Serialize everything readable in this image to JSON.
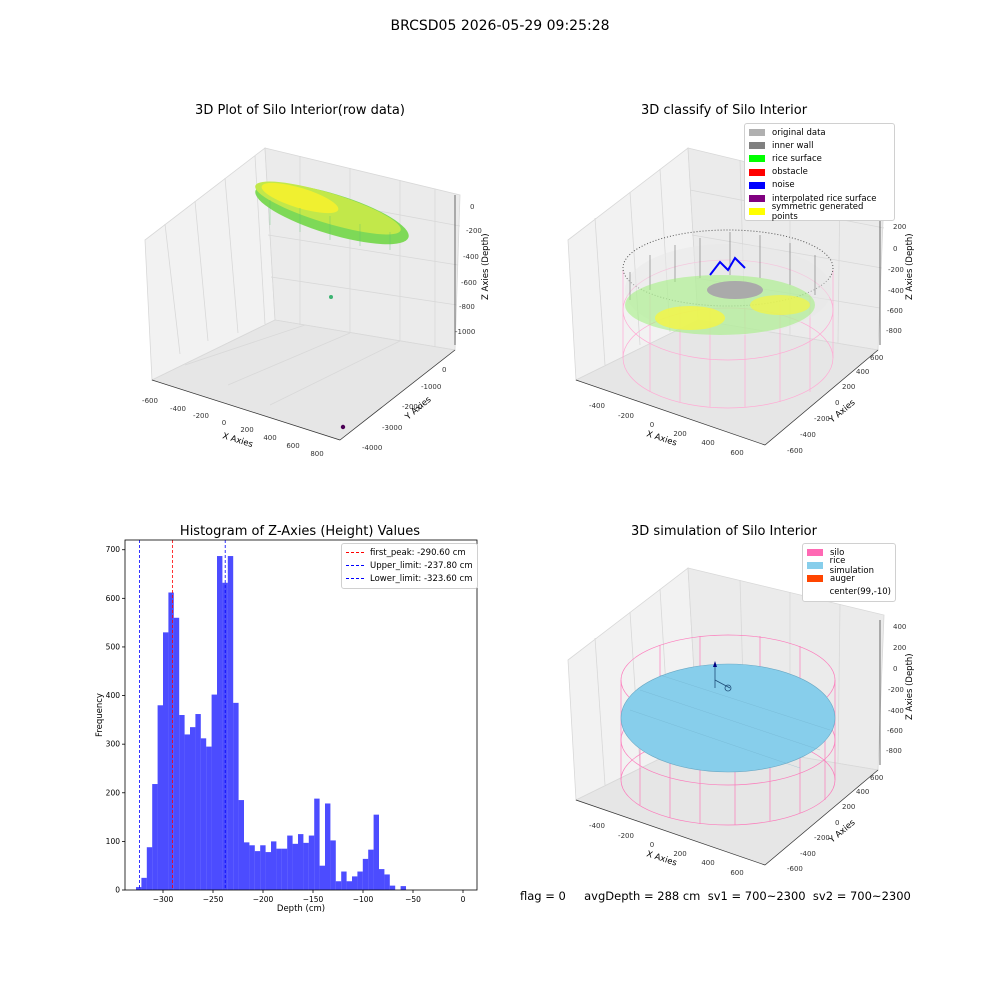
{
  "suptitle": "BRCSD05 2026-05-29 09:25:28",
  "panels": {
    "raw": {
      "title": "3D Plot of Silo Interior(row data)",
      "xlabel": "X Axies",
      "ylabel": "Y Axies",
      "zlabel": "Z Axies (Depth)",
      "xticks": [
        "-600",
        "-400",
        "-200",
        "0",
        "200",
        "400",
        "600",
        "800"
      ],
      "yticks": [
        "-4000",
        "-3000",
        "-2000",
        "-1000",
        "0"
      ],
      "zticks": [
        "0",
        "-200",
        "-400",
        "-600",
        "-800",
        "-1000"
      ]
    },
    "classify": {
      "title": "3D classify of Silo Interior",
      "xlabel": "X Axies",
      "ylabel": "Y Axies",
      "zlabel": "Z Axies (Depth)",
      "xticks": [
        "-400",
        "-200",
        "0",
        "200",
        "400",
        "600"
      ],
      "yticks": [
        "-600",
        "-400",
        "-200",
        "0",
        "200",
        "400",
        "600"
      ],
      "zticks": [
        "200",
        "0",
        "-200",
        "-400",
        "-600",
        "-800"
      ],
      "legend": [
        {
          "label": "original data",
          "color": "#b0b0b0"
        },
        {
          "label": "inner wall",
          "color": "#808080"
        },
        {
          "label": "rice surface",
          "color": "#00ff00"
        },
        {
          "label": "obstacle",
          "color": "#ff0000"
        },
        {
          "label": "noise",
          "color": "#0000ff"
        },
        {
          "label": "interpolated rice surface",
          "color": "#800080"
        },
        {
          "label": "symmetric generated points",
          "color": "#ffff00"
        }
      ]
    },
    "simulation": {
      "title": "3D simulation of Silo Interior",
      "xlabel": "X Axies",
      "ylabel": "Y Axies",
      "zlabel": "Z Axies (Depth)",
      "xticks": [
        "-400",
        "-200",
        "0",
        "200",
        "400",
        "600"
      ],
      "yticks": [
        "-600",
        "-400",
        "-200",
        "0",
        "200",
        "400",
        "600"
      ],
      "zticks": [
        "400",
        "200",
        "0",
        "-200",
        "-400",
        "-600",
        "-800"
      ],
      "legend": [
        {
          "label": "silo",
          "color": "#ff69b4"
        },
        {
          "label": "rice simulation",
          "color": "#87ceeb"
        },
        {
          "label": "auger",
          "color": "#ff4500"
        },
        {
          "label": "center(99,-10)",
          "color": ""
        }
      ]
    }
  },
  "footer": "flag = 0     avgDepth = 288 cm  sv1 = 700~2300  sv2 = 700~2300",
  "chart_data": {
    "type": "bar",
    "title": "Histogram of Z-Axies (Height) Values",
    "xlabel": "Depth (cm)",
    "ylabel": "Frequency",
    "xlim": [
      -338,
      14
    ],
    "ylim": [
      0,
      720
    ],
    "xticks": [
      -300,
      -250,
      -200,
      -150,
      -100,
      -50,
      0
    ],
    "yticks": [
      0,
      100,
      200,
      300,
      400,
      500,
      600,
      700
    ],
    "bins_start": -327,
    "bin_width": 5.4,
    "color": "#0000ff",
    "values": [
      6,
      25,
      88,
      218,
      380,
      530,
      612,
      560,
      360,
      320,
      335,
      362,
      312,
      295,
      402,
      687,
      632,
      687,
      385,
      185,
      98,
      92,
      80,
      92,
      78,
      100,
      85,
      85,
      112,
      95,
      115,
      97,
      112,
      188,
      50,
      178,
      102,
      18,
      38,
      18,
      28,
      38,
      64,
      83,
      155,
      43,
      32,
      9,
      0,
      8
    ],
    "vlines": [
      {
        "label": "first_peak: -290.60 cm",
        "x": -290.6,
        "color": "#ff0000"
      },
      {
        "label": "Upper_limit: -237.80 cm",
        "x": -237.8,
        "color": "#0000ff"
      },
      {
        "label": "Lower_limit: -323.60 cm",
        "x": -323.6,
        "color": "#0000ff"
      }
    ],
    "legend_loc": "upper right"
  }
}
